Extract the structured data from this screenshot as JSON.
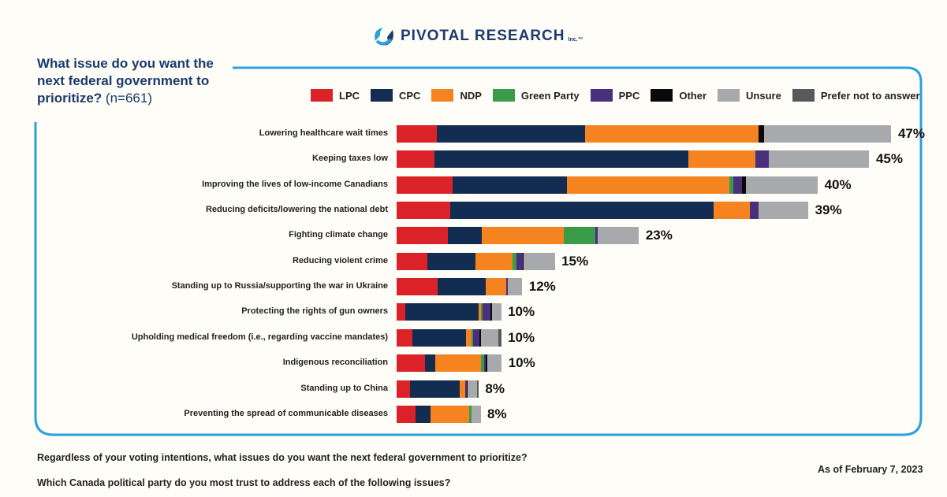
{
  "header": {
    "logo_text": "PIVOTAL RESEARCH",
    "logo_suffix": "Inc.™"
  },
  "question": {
    "text": "What issue do you want the next federal government to prioritize?",
    "n": "(n=661)"
  },
  "footer": {
    "line1": "Regardless of your voting intentions, what issues do you want the next federal government to prioritize?",
    "line2": "Which Canada political party do you most trust to address each of the following issues?",
    "date": "As of February 7, 2023"
  },
  "colors": {
    "frame": "#2aa0dc",
    "brand": "#1c3a6e"
  },
  "chart_data": {
    "type": "bar",
    "orientation": "horizontal",
    "stacked": true,
    "legend_position": "top-right",
    "grid": false,
    "unit": "%",
    "series": [
      {
        "name": "LPC",
        "color": "#dc2229"
      },
      {
        "name": "CPC",
        "color": "#132d52"
      },
      {
        "name": "NDP",
        "color": "#f58420"
      },
      {
        "name": "Green Party",
        "color": "#3a9c49"
      },
      {
        "name": "PPC",
        "color": "#48307d"
      },
      {
        "name": "Other",
        "color": "#0a0a0a"
      },
      {
        "name": "Unsure",
        "color": "#a8a9ad"
      },
      {
        "name": "Prefer not to answer",
        "color": "#58595b"
      }
    ],
    "categories": [
      {
        "label": "Lowering healthcare wait times",
        "total": "47%",
        "values": [
          3.8,
          14.1,
          16.5,
          0,
          0,
          0.5,
          12.1,
          0
        ]
      },
      {
        "label": "Keeping taxes low",
        "total": "45%",
        "values": [
          3.6,
          24.1,
          6.4,
          0,
          1.3,
          0,
          9.5,
          0
        ]
      },
      {
        "label": "Improving the lives of low-income Canadians",
        "total": "40%",
        "values": [
          5.3,
          10.9,
          15.4,
          0.4,
          0.8,
          0.4,
          6.8,
          0
        ]
      },
      {
        "label": "Reducing deficits/lowering the national debt",
        "total": "39%",
        "values": [
          5.1,
          25.0,
          3.5,
          0,
          0.8,
          0,
          4.7,
          0
        ]
      },
      {
        "label": "Fighting climate change",
        "total": "23%",
        "values": [
          4.9,
          3.2,
          7.8,
          3.0,
          0.2,
          0,
          3.9,
          0
        ]
      },
      {
        "label": "Reducing violent crime",
        "total": "15%",
        "values": [
          2.9,
          4.6,
          3.5,
          0.4,
          0.6,
          0.1,
          2.9,
          0
        ]
      },
      {
        "label": "Standing up to Russia/supporting the war in Ukraine",
        "total": "12%",
        "values": [
          3.9,
          4.6,
          1.9,
          0,
          0.2,
          0,
          1.3,
          0
        ]
      },
      {
        "label": "Protecting the rights of gun owners",
        "total": "10%",
        "values": [
          0.8,
          7.0,
          0.2,
          0.2,
          0.7,
          0.2,
          0.8,
          0
        ]
      },
      {
        "label": "Upholding medical freedom (i.e., regarding vaccine mandates)",
        "total": "10%",
        "values": [
          1.5,
          5.1,
          0.5,
          0.2,
          0.6,
          0.1,
          1.7,
          0.2
        ]
      },
      {
        "label": "Indigenous reconciliation",
        "total": "10%",
        "values": [
          2.7,
          1.0,
          4.3,
          0.3,
          0.15,
          0.2,
          1.3,
          0
        ]
      },
      {
        "label": "Standing up to China",
        "total": "8%",
        "values": [
          1.3,
          4.7,
          0.5,
          0,
          0.15,
          0.1,
          0.9,
          0.1
        ]
      },
      {
        "label": "Preventing the spread of communicable diseases",
        "total": "8%",
        "values": [
          1.8,
          1.4,
          3.7,
          0.25,
          0,
          0,
          0.8,
          0
        ]
      }
    ]
  }
}
